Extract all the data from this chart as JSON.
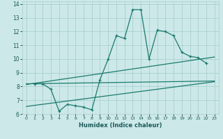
{
  "title": "",
  "xlabel": "Humidex (Indice chaleur)",
  "ylabel": "",
  "bg_color": "#cce8e8",
  "grid_color": "#aacfcf",
  "line_color": "#1a7a6e",
  "xlim": [
    -0.5,
    23.5
  ],
  "ylim": [
    6,
    14.2
  ],
  "xtick_labels": [
    "0",
    "1",
    "2",
    "3",
    "4",
    "5",
    "6",
    "7",
    "8",
    "9",
    "10",
    "11",
    "12",
    "13",
    "14",
    "15",
    "16",
    "17",
    "18",
    "19",
    "20",
    "21",
    "22",
    "23"
  ],
  "ytick_vals": [
    6,
    7,
    8,
    9,
    10,
    11,
    12,
    13,
    14
  ],
  "line1_x": [
    1,
    2,
    3,
    4,
    5,
    6,
    7,
    8,
    9,
    10,
    11,
    12,
    13,
    14,
    15,
    16,
    17,
    18,
    19,
    20,
    21,
    22
  ],
  "line1_y": [
    8.2,
    8.2,
    7.8,
    6.2,
    6.7,
    6.6,
    6.5,
    6.3,
    8.5,
    10.0,
    11.7,
    11.5,
    13.6,
    13.6,
    10.0,
    12.1,
    12.0,
    11.7,
    10.5,
    10.2,
    10.1,
    9.7
  ],
  "line2_x": [
    0,
    23
  ],
  "line2_y": [
    8.2,
    8.4
  ],
  "line3_x": [
    0,
    23
  ],
  "line3_y": [
    8.15,
    10.15
  ],
  "line4_x": [
    0,
    23
  ],
  "line4_y": [
    6.55,
    8.35
  ]
}
